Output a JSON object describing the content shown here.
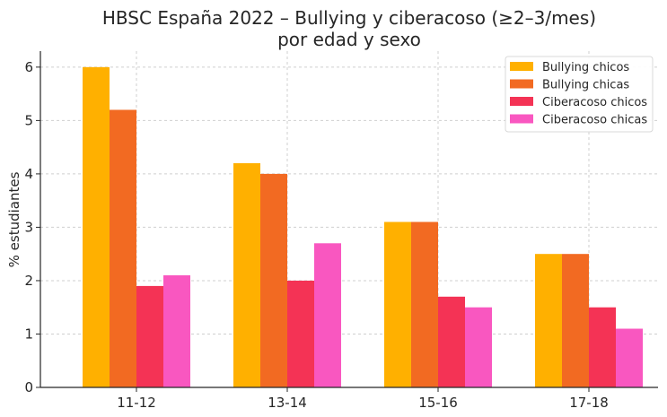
{
  "chart_data": {
    "type": "bar",
    "title": "HBSC España 2022 – Bullying y ciberacoso (≥2–3/mes)",
    "subtitle": "por edad y sexo",
    "xlabel": "",
    "ylabel": "% estudiantes",
    "ylim": [
      0,
      6.3
    ],
    "yticks": [
      0,
      1,
      2,
      3,
      4,
      5,
      6
    ],
    "grid": true,
    "legend_position": "top-right",
    "categories": [
      "11-12",
      "13-14",
      "15-16",
      "17-18"
    ],
    "series": [
      {
        "name": "Bullying chicos",
        "color": "#FFB000",
        "values": [
          6.0,
          4.2,
          3.1,
          2.5
        ]
      },
      {
        "name": "Bullying chicas",
        "color": "#F26A22",
        "values": [
          5.2,
          4.0,
          3.1,
          2.5
        ]
      },
      {
        "name": "Ciberacoso chicos",
        "color": "#F43355",
        "values": [
          1.9,
          2.0,
          1.7,
          1.5
        ]
      },
      {
        "name": "Ciberacoso chicas",
        "color": "#F957C0",
        "values": [
          2.1,
          2.7,
          1.5,
          1.1
        ]
      }
    ]
  }
}
